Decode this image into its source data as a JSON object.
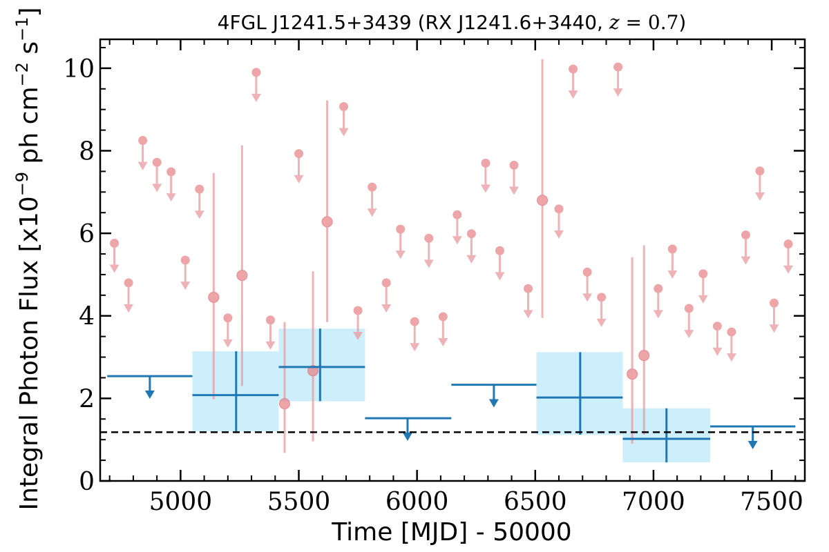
{
  "chart_data": {
    "type": "scatter",
    "title": {
      "prefix": "4FGL J1241.5+3439 (RX J1241.6+3440, ",
      "var": "z",
      "eq": " = ",
      "value": "0.7",
      "suffix": ")"
    },
    "xlabel": "Time [MJD] - 50000",
    "ylabel": {
      "prefix": "Integral Photon Flux [x10",
      "exp": "−9",
      "mid": " ph cm",
      "exp2": "−2",
      "mid2": " s",
      "exp3": "−1",
      "suffix": "]"
    },
    "xlim": [
      4660,
      7640
    ],
    "ylim": [
      0,
      10.7
    ],
    "xticks": [
      5000,
      5500,
      6000,
      6500,
      7000,
      7500
    ],
    "yticks": [
      0,
      2,
      4,
      6,
      8,
      10
    ],
    "reference_level": 1.18,
    "colors": {
      "fine": "#e89a9e",
      "fine_point": "#e7878c",
      "coarse": "#1f77b4",
      "band": "#cdeefb",
      "reference": "#000000"
    },
    "fine_upper_limits": [
      {
        "x": 4720,
        "y": 5.76
      },
      {
        "x": 4780,
        "y": 4.8
      },
      {
        "x": 4840,
        "y": 8.25
      },
      {
        "x": 4900,
        "y": 7.72
      },
      {
        "x": 4960,
        "y": 7.49
      },
      {
        "x": 5020,
        "y": 5.35
      },
      {
        "x": 5080,
        "y": 7.07
      },
      {
        "x": 5200,
        "y": 3.95
      },
      {
        "x": 5320,
        "y": 9.9
      },
      {
        "x": 5380,
        "y": 3.9
      },
      {
        "x": 5500,
        "y": 7.93
      },
      {
        "x": 5690,
        "y": 9.07
      },
      {
        "x": 5750,
        "y": 4.13
      },
      {
        "x": 5810,
        "y": 7.12
      },
      {
        "x": 5870,
        "y": 4.8
      },
      {
        "x": 5930,
        "y": 6.1
      },
      {
        "x": 5990,
        "y": 3.86
      },
      {
        "x": 6050,
        "y": 5.88
      },
      {
        "x": 6110,
        "y": 3.98
      },
      {
        "x": 6170,
        "y": 6.45
      },
      {
        "x": 6230,
        "y": 5.99
      },
      {
        "x": 6290,
        "y": 7.7
      },
      {
        "x": 6350,
        "y": 5.58
      },
      {
        "x": 6410,
        "y": 7.65
      },
      {
        "x": 6470,
        "y": 4.66
      },
      {
        "x": 6600,
        "y": 6.59
      },
      {
        "x": 6660,
        "y": 9.98
      },
      {
        "x": 6720,
        "y": 5.06
      },
      {
        "x": 6780,
        "y": 4.45
      },
      {
        "x": 6850,
        "y": 10.03
      },
      {
        "x": 7020,
        "y": 4.66
      },
      {
        "x": 7080,
        "y": 5.62
      },
      {
        "x": 7150,
        "y": 4.18
      },
      {
        "x": 7210,
        "y": 5.02
      },
      {
        "x": 7270,
        "y": 3.75
      },
      {
        "x": 7330,
        "y": 3.61
      },
      {
        "x": 7390,
        "y": 5.96
      },
      {
        "x": 7450,
        "y": 7.51
      },
      {
        "x": 7510,
        "y": 4.31
      },
      {
        "x": 7570,
        "y": 5.74
      }
    ],
    "fine_detections": [
      {
        "x": 5140,
        "y": 4.45,
        "lo": 1.98,
        "hi": 7.46
      },
      {
        "x": 5260,
        "y": 4.98,
        "lo": 2.3,
        "hi": 8.13
      },
      {
        "x": 5440,
        "y": 1.87,
        "lo": 0.68,
        "hi": 3.85
      },
      {
        "x": 5560,
        "y": 2.67,
        "lo": 0.96,
        "hi": 5.08
      },
      {
        "x": 5620,
        "y": 6.28,
        "lo": 3.85,
        "hi": 9.22
      },
      {
        "x": 6530,
        "y": 6.8,
        "lo": 3.95,
        "hi": 10.22
      },
      {
        "x": 6910,
        "y": 2.59,
        "lo": 0.9,
        "hi": 5.42
      },
      {
        "x": 6960,
        "y": 3.04,
        "lo": 1.12,
        "hi": 5.71
      }
    ],
    "coarse_upper_limits": [
      {
        "x0": 4690,
        "x1": 5050,
        "x": 4870,
        "y": 2.54
      },
      {
        "x0": 5780,
        "x1": 6145,
        "x": 5960,
        "y": 1.52
      },
      {
        "x0": 6145,
        "x1": 6505,
        "x": 6325,
        "y": 2.33
      },
      {
        "x0": 7240,
        "x1": 7600,
        "x": 7420,
        "y": 1.32
      }
    ],
    "coarse_detections": [
      {
        "x0": 5050,
        "x1": 5415,
        "x": 5235,
        "y": 2.08,
        "lo": 1.2,
        "hi": 3.14
      },
      {
        "x0": 5415,
        "x1": 5780,
        "x": 5590,
        "y": 2.76,
        "lo": 1.93,
        "hi": 3.69
      },
      {
        "x0": 6505,
        "x1": 6870,
        "x": 6690,
        "y": 2.02,
        "lo": 1.12,
        "hi": 3.12
      },
      {
        "x0": 6870,
        "x1": 7240,
        "x": 7055,
        "y": 1.02,
        "lo": 0.45,
        "hi": 1.76
      }
    ]
  }
}
